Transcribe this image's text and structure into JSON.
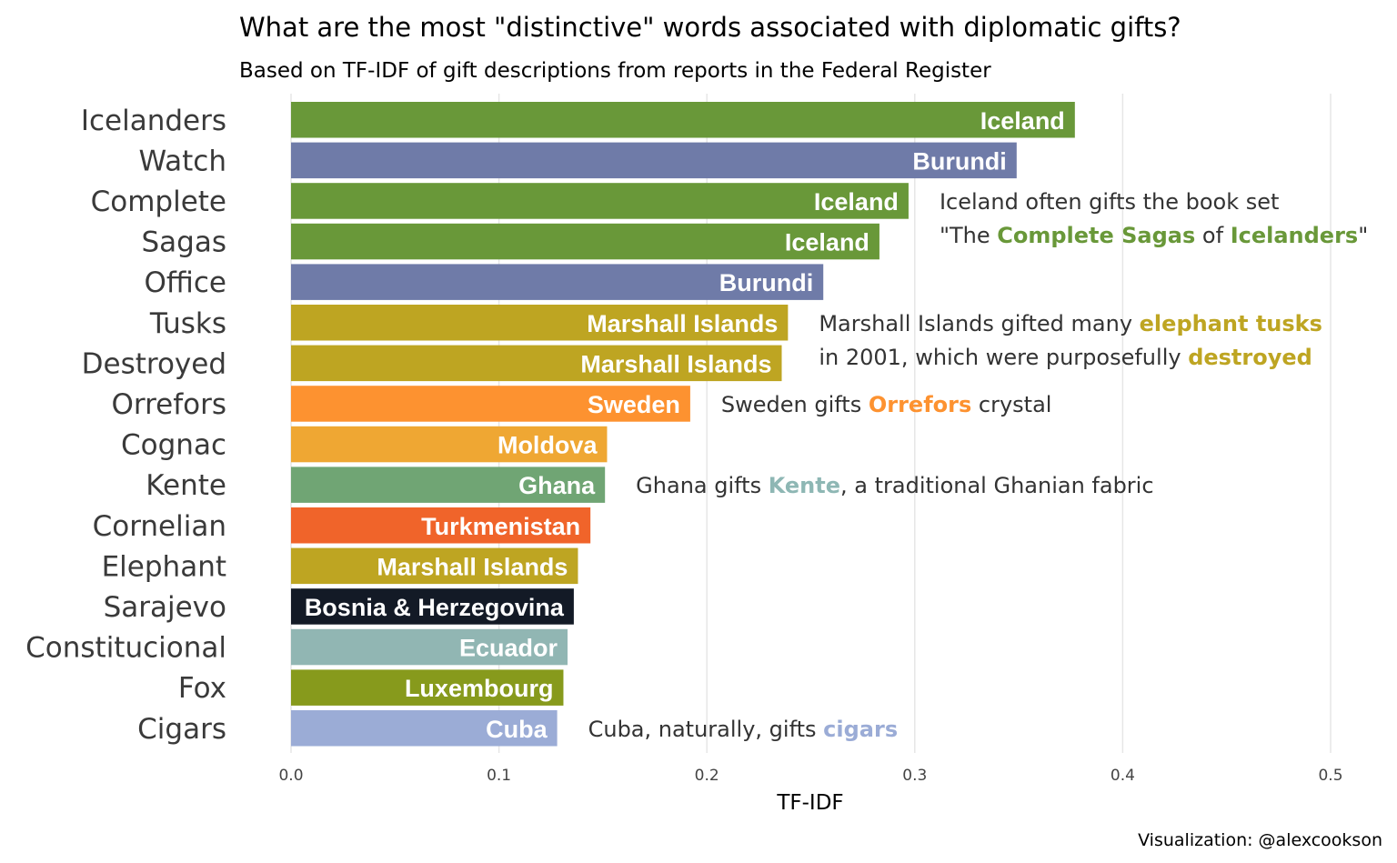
{
  "colors": {
    "Iceland": "#699839",
    "Burundi": "#6f7ba8",
    "Marshall Islands": "#bea522",
    "Sweden": "#fd9230",
    "Moldova": "#efa733",
    "Ghana": "#70a574",
    "Turkmenistan": "#f0642a",
    "Bosnia & Herzegovina": "#131a26",
    "Ecuador": "#91b6b3",
    "Luxembourg": "#879a1c",
    "Cuba": "#9bacd6",
    "kente_text": "#8eb7b4",
    "tusks_text": "#bea522",
    "orrefors_text": "#fd9230",
    "sagas_text": "#699839",
    "cigars_text": "#9bacd6"
  },
  "chart_data": {
    "type": "bar",
    "orientation": "horizontal",
    "title": "What are the most \"distinctive\" words associated with diplomatic gifts?",
    "subtitle": "Based on TF-IDF of gift descriptions from reports in the Federal Register",
    "xlabel": "TF-IDF",
    "ylabel": "",
    "xlim": [
      0,
      0.5
    ],
    "xticks": [
      "0.0",
      "0.1",
      "0.2",
      "0.3",
      "0.4",
      "0.5"
    ],
    "xtick_values": [
      0,
      0.1,
      0.2,
      0.3,
      0.4,
      0.5
    ],
    "grid": true,
    "legend": "none",
    "categories": [
      "Icelanders",
      "Watch",
      "Complete",
      "Sagas",
      "Office",
      "Tusks",
      "Destroyed",
      "Orrefors",
      "Cognac",
      "Kente",
      "Cornelian",
      "Elephant",
      "Sarajevo",
      "Constitucional",
      "Fox",
      "Cigars"
    ],
    "values": [
      0.377,
      0.349,
      0.297,
      0.283,
      0.256,
      0.239,
      0.236,
      0.192,
      0.152,
      0.151,
      0.144,
      0.138,
      0.136,
      0.133,
      0.131,
      0.128
    ],
    "countries": [
      "Iceland",
      "Burundi",
      "Iceland",
      "Iceland",
      "Burundi",
      "Marshall Islands",
      "Marshall Islands",
      "Sweden",
      "Moldova",
      "Ghana",
      "Turkmenistan",
      "Marshall Islands",
      "Bosnia & Herzegovina",
      "Ecuador",
      "Luxembourg",
      "Cuba"
    ],
    "annotations": [
      {
        "row": 2,
        "lines": [
          [
            {
              "t": "Iceland often gifts the book set"
            }
          ],
          [
            {
              "t": "\"The "
            },
            {
              "t": "Complete Sagas",
              "hl": "sagas_text"
            },
            {
              "t": " of "
            },
            {
              "t": "Icelanders",
              "hl": "sagas_text"
            },
            {
              "t": "\""
            }
          ]
        ]
      },
      {
        "row": 5,
        "lines": [
          [
            {
              "t": "Marshall Islands gifted many "
            },
            {
              "t": "elephant tusks",
              "hl": "tusks_text"
            }
          ],
          [
            {
              "t": "in 2001, which were purposefully "
            },
            {
              "t": "destroyed",
              "hl": "tusks_text"
            }
          ]
        ]
      },
      {
        "row": 7,
        "lines": [
          [
            {
              "t": "Sweden gifts "
            },
            {
              "t": "Orrefors",
              "hl": "orrefors_text"
            },
            {
              "t": " crystal"
            }
          ]
        ]
      },
      {
        "row": 9,
        "lines": [
          [
            {
              "t": "Ghana gifts "
            },
            {
              "t": "Kente",
              "hl": "kente_text"
            },
            {
              "t": ", a traditional Ghanian fabric"
            }
          ]
        ]
      },
      {
        "row": 15,
        "lines": [
          [
            {
              "t": "Cuba, naturally, gifts "
            },
            {
              "t": "cigars",
              "hl": "cigars_text"
            }
          ]
        ]
      }
    ]
  },
  "caption": "Visualization: @alexcookson"
}
